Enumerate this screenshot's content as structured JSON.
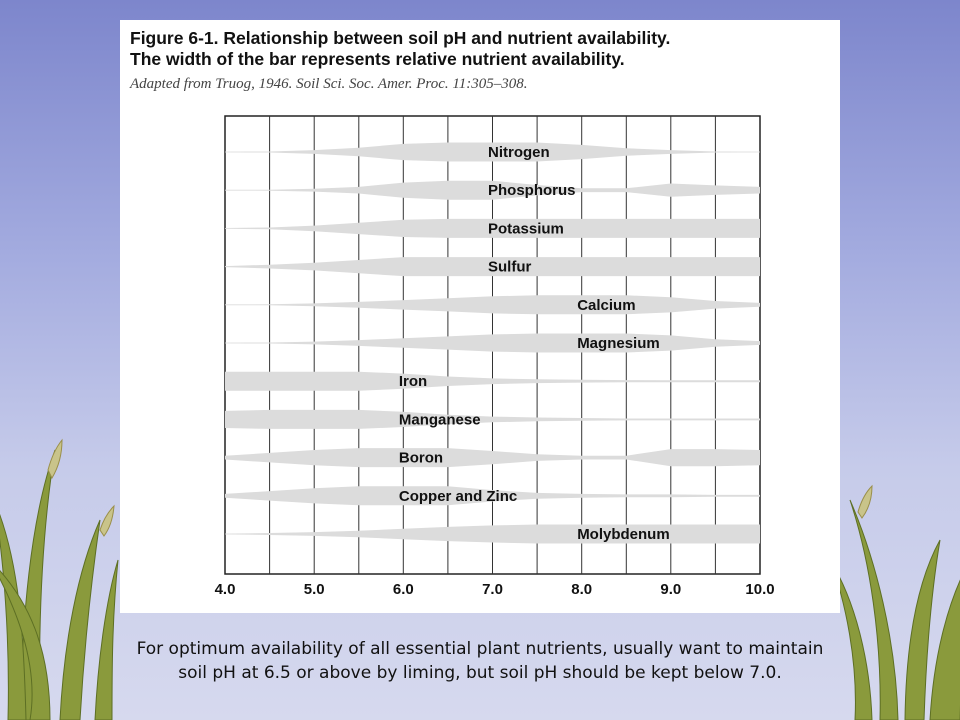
{
  "figure": {
    "title_line1": "Figure 6-1. Relationship between soil pH and nutrient availability.",
    "title_line2": "The width of the bar represents relative nutrient availability.",
    "source": "Adapted from Truog, 1946. Soil Sci. Soc. Amer. Proc. 11:305–308."
  },
  "caption": {
    "line1": "For optimum availability of all essential plant nutrients, usually want to maintain",
    "line2": "soil pH at 6.5 or above by liming, but soil pH should be kept below 7.0."
  },
  "chart_data": {
    "type": "band",
    "title": "Figure 6-1. Relationship between soil pH and nutrient availability.",
    "xlabel": "",
    "xlim": [
      4.0,
      10.0
    ],
    "x_ticks": [
      "4.0",
      "5.0",
      "6.0",
      "7.0",
      "8.0",
      "9.0",
      "10.0"
    ],
    "grid": "vertical lines every 0.5 pH",
    "bar_color": "#dcdcdc",
    "series": [
      {
        "name": "Nitrogen",
        "x": [
          4.0,
          4.5,
          5.0,
          5.5,
          6.0,
          6.5,
          7.0,
          7.5,
          8.0,
          8.5,
          9.0,
          9.5,
          10.0
        ],
        "width": [
          0.0,
          0.05,
          0.2,
          0.45,
          0.85,
          1.0,
          1.0,
          1.0,
          0.75,
          0.4,
          0.2,
          0.05,
          0.0
        ]
      },
      {
        "name": "Phosphorus",
        "x": [
          4.0,
          4.5,
          5.0,
          5.5,
          6.0,
          6.5,
          7.0,
          7.5,
          8.0,
          8.5,
          9.0,
          9.5,
          10.0
        ],
        "width": [
          0.0,
          0.05,
          0.15,
          0.35,
          0.8,
          1.0,
          1.0,
          0.55,
          0.2,
          0.2,
          0.7,
          0.5,
          0.35
        ]
      },
      {
        "name": "Potassium",
        "x": [
          4.0,
          4.5,
          5.0,
          5.5,
          6.0,
          6.5,
          7.0,
          7.5,
          8.0,
          8.5,
          9.0,
          9.5,
          10.0
        ],
        "width": [
          0.0,
          0.1,
          0.3,
          0.6,
          0.9,
          1.0,
          1.0,
          1.0,
          1.0,
          1.0,
          1.0,
          1.0,
          1.0
        ]
      },
      {
        "name": "Sulfur",
        "x": [
          4.0,
          4.5,
          5.0,
          5.5,
          6.0,
          6.5,
          7.0,
          7.5,
          8.0,
          8.5,
          9.0,
          9.5,
          10.0
        ],
        "width": [
          0.05,
          0.2,
          0.4,
          0.7,
          1.0,
          1.0,
          1.0,
          1.0,
          1.0,
          1.0,
          1.0,
          1.0,
          1.0
        ]
      },
      {
        "name": "Calcium",
        "x": [
          4.0,
          4.5,
          5.0,
          5.5,
          6.0,
          6.5,
          7.0,
          7.5,
          8.0,
          8.5,
          9.0,
          9.5,
          10.0
        ],
        "width": [
          0.0,
          0.05,
          0.15,
          0.3,
          0.5,
          0.7,
          0.9,
          1.0,
          1.0,
          1.0,
          0.8,
          0.4,
          0.2
        ]
      },
      {
        "name": "Magnesium",
        "x": [
          4.0,
          4.5,
          5.0,
          5.5,
          6.0,
          6.5,
          7.0,
          7.5,
          8.0,
          8.5,
          9.0,
          9.5,
          10.0
        ],
        "width": [
          0.0,
          0.05,
          0.15,
          0.3,
          0.5,
          0.7,
          0.9,
          1.0,
          1.0,
          1.0,
          0.8,
          0.4,
          0.2
        ]
      },
      {
        "name": "Iron",
        "x": [
          4.0,
          4.5,
          5.0,
          5.5,
          6.0,
          6.5,
          7.0,
          7.5,
          8.0,
          8.5,
          9.0,
          9.5,
          10.0
        ],
        "width": [
          1.0,
          1.0,
          1.0,
          1.0,
          0.8,
          0.5,
          0.3,
          0.2,
          0.15,
          0.12,
          0.1,
          0.1,
          0.1
        ]
      },
      {
        "name": "Manganese",
        "x": [
          4.0,
          4.5,
          5.0,
          5.5,
          6.0,
          6.5,
          7.0,
          7.5,
          8.0,
          8.5,
          9.0,
          9.5,
          10.0
        ],
        "width": [
          0.9,
          1.0,
          1.0,
          1.0,
          0.8,
          0.5,
          0.3,
          0.2,
          0.15,
          0.1,
          0.1,
          0.1,
          0.1
        ]
      },
      {
        "name": "Boron",
        "x": [
          4.0,
          4.5,
          5.0,
          5.5,
          6.0,
          6.5,
          7.0,
          7.5,
          8.0,
          8.5,
          9.0,
          9.5,
          10.0
        ],
        "width": [
          0.2,
          0.5,
          0.8,
          1.0,
          1.0,
          1.0,
          0.7,
          0.35,
          0.2,
          0.2,
          0.9,
          0.9,
          0.8
        ]
      },
      {
        "name": "Copper and Zinc",
        "x": [
          4.0,
          4.5,
          5.0,
          5.5,
          6.0,
          6.5,
          7.0,
          7.5,
          8.0,
          8.5,
          9.0,
          9.5,
          10.0
        ],
        "width": [
          0.2,
          0.5,
          0.8,
          1.0,
          1.0,
          1.0,
          0.6,
          0.3,
          0.2,
          0.15,
          0.15,
          0.1,
          0.1
        ]
      },
      {
        "name": "Molybdenum",
        "x": [
          4.0,
          4.5,
          5.0,
          5.5,
          6.0,
          6.5,
          7.0,
          7.5,
          8.0,
          8.5,
          9.0,
          9.5,
          10.0
        ],
        "width": [
          0.0,
          0.1,
          0.2,
          0.35,
          0.55,
          0.75,
          0.9,
          1.0,
          1.0,
          1.0,
          1.0,
          1.0,
          1.0
        ]
      }
    ]
  }
}
